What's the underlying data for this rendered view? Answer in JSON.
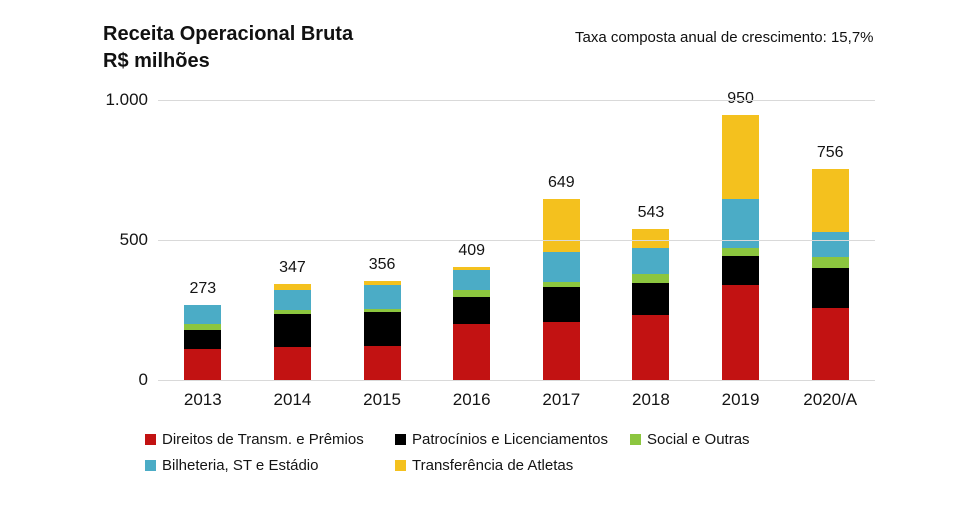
{
  "title": {
    "line1": "Receita Operacional Bruta",
    "line2": "R$ milhões"
  },
  "annotation": "Taxa composta anual de crescimento: 15,7%",
  "colors": {
    "background": "#ffffff",
    "gridline": "#d9d9d9",
    "text": "#141414"
  },
  "chart_data": {
    "type": "bar",
    "stacked": true,
    "title": "Receita Operacional Bruta R$ milhões",
    "xlabel": "",
    "ylabel": "",
    "ylim": [
      0,
      1000
    ],
    "grid": "horizontal",
    "legend_position": "bottom",
    "categories": [
      "2013",
      "2014",
      "2015",
      "2016",
      "2017",
      "2018",
      "2019",
      "2020/A"
    ],
    "totals": [
      "273",
      "347",
      "356",
      "409",
      "649",
      "543",
      "950",
      "756"
    ],
    "yticks": [
      {
        "label": "0",
        "value": 0
      },
      {
        "label": "500",
        "value": 500
      },
      {
        "label": "1.000",
        "value": 1000
      }
    ],
    "series": [
      {
        "name": "Direitos de Transm. e Prêmios",
        "color": "#c21212",
        "values": [
          113,
          120,
          125,
          204,
          210,
          236,
          343,
          262
        ]
      },
      {
        "name": "Patrocínios e Licenciamentos",
        "color": "#000000",
        "values": [
          70,
          118,
          120,
          95,
          127,
          115,
          105,
          143
        ]
      },
      {
        "name": "Social e Outras",
        "color": "#8cc63f",
        "values": [
          22,
          17,
          11,
          26,
          18,
          33,
          26,
          39
        ]
      },
      {
        "name": "Bilheteria, ST e Estádio",
        "color": "#4bacc6",
        "values": [
          68,
          71,
          87,
          71,
          107,
          93,
          175,
          89
        ]
      },
      {
        "name": "Transferência de Atletas",
        "color": "#f4c11e",
        "values": [
          0,
          21,
          13,
          13,
          187,
          66,
          301,
          223
        ]
      }
    ],
    "legend_rows": [
      [
        0,
        1,
        2
      ],
      [
        3,
        4
      ]
    ]
  }
}
